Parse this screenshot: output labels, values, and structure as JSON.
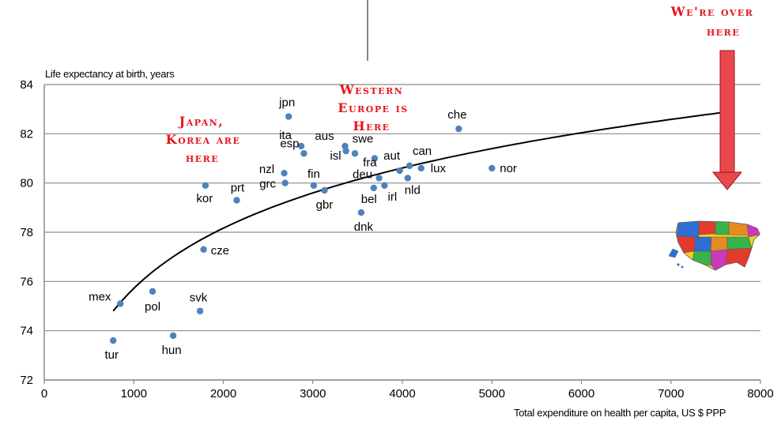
{
  "chart_data": {
    "type": "scatter",
    "title": "",
    "xlabel": "Total expenditure on health per capita, US $ PPP",
    "ylabel": "Life expectancy at birth, years",
    "xlim": [
      0,
      8000
    ],
    "ylim": [
      72,
      84
    ],
    "x_ticks": [
      "0",
      "1000",
      "2000",
      "3000",
      "4000",
      "5000",
      "6000",
      "7000",
      "8000"
    ],
    "y_ticks": [
      "72",
      "74",
      "76",
      "78",
      "80",
      "82",
      "84"
    ],
    "grid": "horizontal",
    "legend": "none",
    "point_color": "#4f81bd",
    "series": [
      {
        "points": [
          {
            "label": "jpn",
            "x": 2730,
            "y": 82.7
          },
          {
            "label": "che",
            "x": 4630,
            "y": 82.2
          },
          {
            "label": "ita",
            "x": 2870,
            "y": 81.5
          },
          {
            "label": "aus",
            "x": 3360,
            "y": 81.5
          },
          {
            "label": "swe",
            "x": 3470,
            "y": 81.2
          },
          {
            "label": "esp",
            "x": 2900,
            "y": 81.2
          },
          {
            "label": "isl",
            "x": 3370,
            "y": 81.3
          },
          {
            "label": "fra",
            "x": 3690,
            "y": 81.0
          },
          {
            "label": "aut",
            "x": 3970,
            "y": 80.5
          },
          {
            "label": "can",
            "x": 4080,
            "y": 80.7
          },
          {
            "label": "lux",
            "x": 4210,
            "y": 80.6
          },
          {
            "label": "nor",
            "x": 5000,
            "y": 80.6
          },
          {
            "label": "nzl",
            "x": 2680,
            "y": 80.4
          },
          {
            "label": "deu",
            "x": 3740,
            "y": 80.2
          },
          {
            "label": "fin",
            "x": 3010,
            "y": 79.9
          },
          {
            "label": "grc",
            "x": 2690,
            "y": 80.0
          },
          {
            "label": "bel",
            "x": 3680,
            "y": 79.8
          },
          {
            "label": "irl",
            "x": 3800,
            "y": 79.9
          },
          {
            "label": "nld",
            "x": 4060,
            "y": 80.2
          },
          {
            "label": "kor",
            "x": 1800,
            "y": 79.9
          },
          {
            "label": "prt",
            "x": 2150,
            "y": 79.3
          },
          {
            "label": "gbr",
            "x": 3130,
            "y": 79.7
          },
          {
            "label": "dnk",
            "x": 3540,
            "y": 78.8
          },
          {
            "label": "cze",
            "x": 1780,
            "y": 77.3
          },
          {
            "label": "mex",
            "x": 850,
            "y": 75.1
          },
          {
            "label": "pol",
            "x": 1210,
            "y": 75.6
          },
          {
            "label": "svk",
            "x": 1740,
            "y": 74.8
          },
          {
            "label": "tur",
            "x": 770,
            "y": 73.6
          },
          {
            "label": "hun",
            "x": 1440,
            "y": 73.8
          }
        ]
      }
    ],
    "trendline": {
      "type": "logarithmic",
      "x_start": 770,
      "x_end": 7550,
      "y_start": 74.8,
      "y_end": 82.85
    },
    "annotations": [
      {
        "lines": [
          "Japan,",
          "Korea are",
          "here"
        ]
      },
      {
        "lines": [
          "Western",
          "Europe is",
          "Here"
        ]
      },
      {
        "lines": [
          "We're over",
          "here"
        ]
      }
    ],
    "callout_color": "#e8141b"
  }
}
